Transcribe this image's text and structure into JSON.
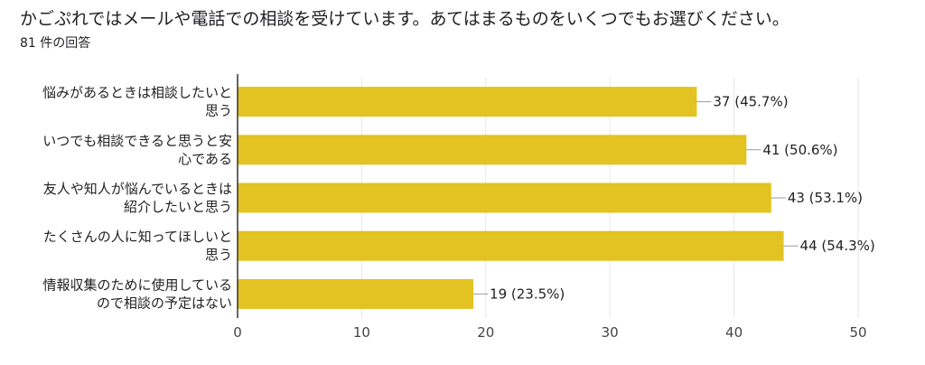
{
  "question": {
    "title": "かごぷれではメールや電話での相談を受けています。あてはまるものをいくつでもお選びください。",
    "response_count": "81 件の回答"
  },
  "colors": {
    "bar": "#e2c321",
    "axis": "#333333",
    "grid": "#e6e6e6",
    "leader": "#999999"
  },
  "chart_data": {
    "type": "bar",
    "orientation": "horizontal",
    "categories": [
      [
        "悩みがあるときは相談したいと",
        "思う"
      ],
      [
        "いつでも相談できると思うと安",
        "心である"
      ],
      [
        "友人や知人が悩んでいるときは",
        "紹介したいと思う"
      ],
      [
        "たくさんの人に知ってほしいと",
        "思う"
      ],
      [
        "情報収集のために使用している",
        "ので相談の予定はない"
      ]
    ],
    "values": [
      37,
      41,
      43,
      44,
      19
    ],
    "data_labels": [
      "37 (45.7%)",
      "41 (50.6%)",
      "43 (53.1%)",
      "44 (54.3%)",
      "19 (23.5%)"
    ],
    "xlim": [
      0,
      50
    ],
    "xticks": [
      0,
      10,
      20,
      30,
      40,
      50
    ],
    "grid": true,
    "legend": "none"
  }
}
